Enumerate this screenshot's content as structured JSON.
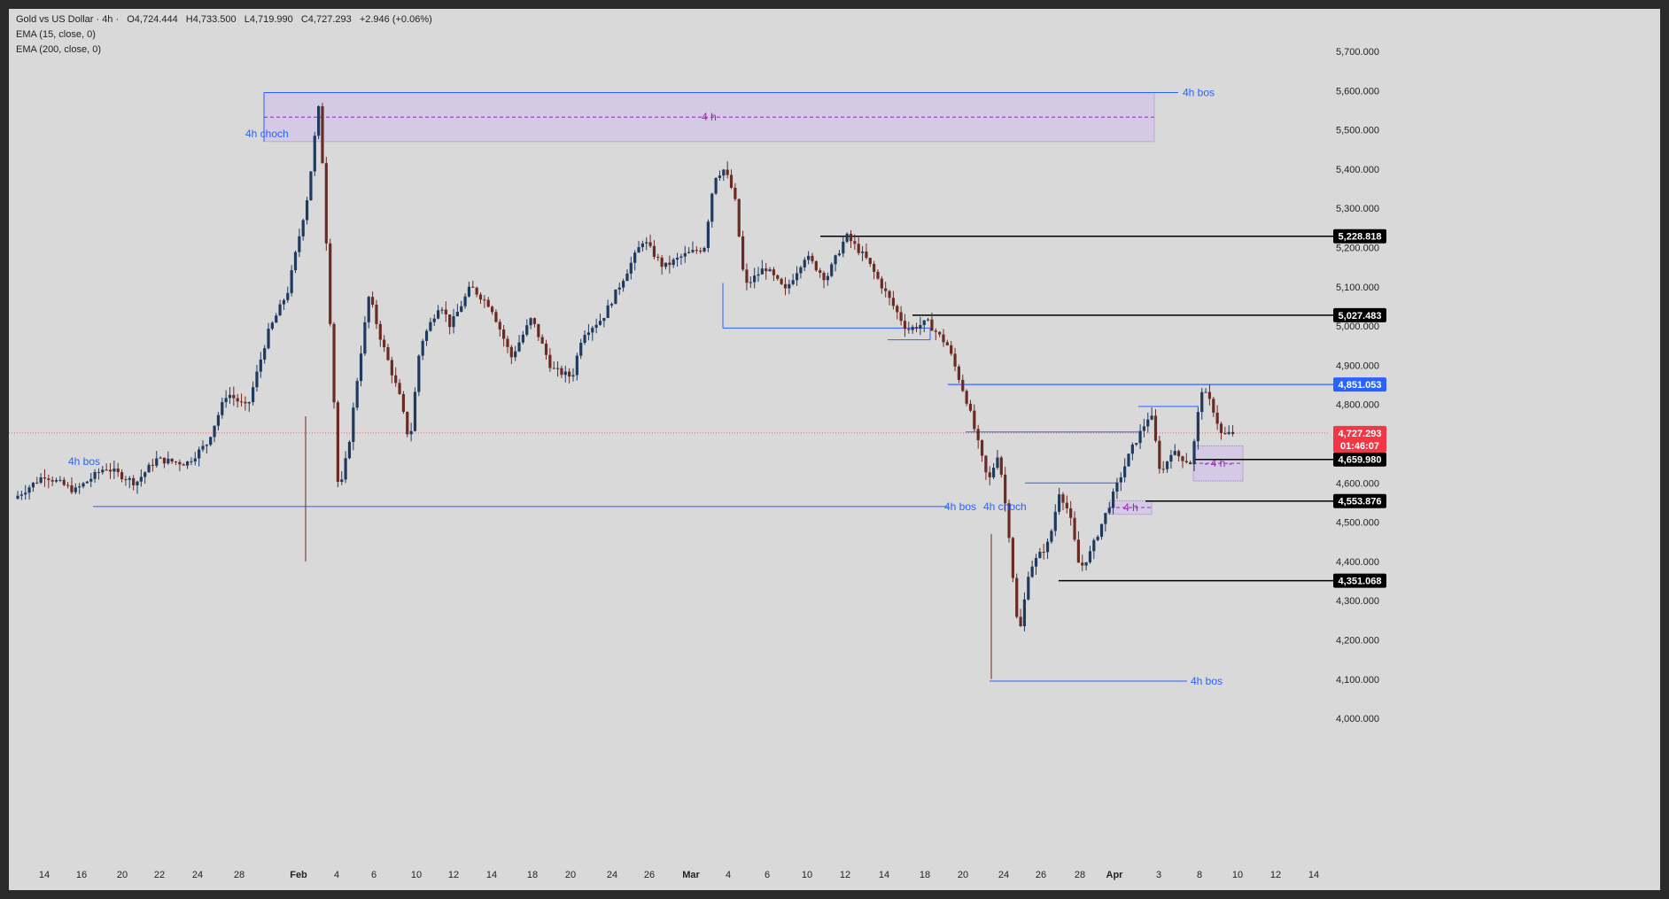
{
  "legend": {
    "symbol": "Gold vs US Dollar · 4h ·",
    "open": "O4,724.444",
    "high": "H4,733.500",
    "low": "L4,719.990",
    "close": "C4,727.293",
    "change": "+2.946 (+0.06%)",
    "ema1": "EMA (15, close, 0)",
    "ema2": "EMA (200, close, 0)"
  },
  "colors": {
    "background": "#d9d9d9",
    "frame": "#2a2a2a",
    "up_candle": "#1f3a5f",
    "down_candle": "#6b2a24",
    "structure_line": "#2962ff",
    "zone_fill": "#d1c4e9",
    "zone_text": "#9c27b0",
    "current_price": "#f23645",
    "blue_tag": "#2962ff",
    "black_tag": "#000000"
  },
  "chart_data": {
    "type": "candlestick",
    "x_tick_labels": [
      "14",
      "16",
      "20",
      "22",
      "24",
      "28",
      "Feb",
      "4",
      "6",
      "10",
      "12",
      "14",
      "18",
      "20",
      "24",
      "26",
      "Mar",
      "4",
      "6",
      "10",
      "12",
      "14",
      "18",
      "20",
      "24",
      "26",
      "28",
      "Apr",
      "3",
      "8",
      "10",
      "12",
      "14"
    ],
    "y_tick_labels": [
      "5,700.000",
      "5,600.000",
      "5,500.000",
      "5,400.000",
      "5,300.000",
      "5,200.000",
      "5,100.000",
      "5,000.000",
      "4,900.000",
      "4,800.000",
      "4,700.000",
      "4,600.000",
      "4,500.000",
      "4,400.000",
      "4,300.000",
      "4,200.000",
      "4,100.000",
      "4,000.000"
    ],
    "y_ticks": [
      5700,
      5600,
      5500,
      5400,
      5300,
      5200,
      5100,
      5000,
      4900,
      4800,
      4700,
      4600,
      4500,
      4400,
      4300,
      4200,
      4100,
      4000
    ],
    "ylim": [
      3950,
      5780
    ],
    "current_price": {
      "value": "4,727.293",
      "countdown": "01:46:07"
    },
    "price_levels": [
      {
        "label": "5,228.818",
        "value": 5228.818,
        "style": "black"
      },
      {
        "label": "5,027.483",
        "value": 5027.483,
        "style": "black"
      },
      {
        "label": "4,851.053",
        "value": 4851.053,
        "style": "blue"
      },
      {
        "label": "4,659.980",
        "value": 4659.98,
        "style": "black"
      },
      {
        "label": "4,553.876",
        "value": 4553.876,
        "style": "black"
      },
      {
        "label": "4,351.068",
        "value": 4351.068,
        "style": "black"
      }
    ],
    "annotations": [
      {
        "text": "4h bos",
        "date": "Jan 16",
        "value": 4655
      },
      {
        "text": "4h choch",
        "date": "Jan 29",
        "value": 5490
      },
      {
        "text": "4h bos",
        "date": "Feb 29",
        "value": 5595
      },
      {
        "text": "4h bos",
        "date": "Mar 19",
        "value": 4540
      },
      {
        "text": "4h choch",
        "date": "Mar 22",
        "value": 4540
      },
      {
        "text": "4h bos",
        "date": "Apr 3",
        "value": 4095
      }
    ],
    "zones": [
      {
        "label": "4 h",
        "top": 5595,
        "bottom": 5470
      },
      {
        "label": "4 h",
        "top": 4555,
        "bottom": 4520
      },
      {
        "label": "- 4 h -",
        "top": 4695,
        "bottom": 4605
      }
    ],
    "series_points": [
      [
        0,
        4560
      ],
      [
        3,
        4620
      ],
      [
        6,
        4580
      ],
      [
        9,
        4640
      ],
      [
        12,
        4600
      ],
      [
        14,
        4660
      ],
      [
        17,
        4650
      ],
      [
        19,
        4700
      ],
      [
        21,
        4830
      ],
      [
        23,
        4790
      ],
      [
        25,
        4980
      ],
      [
        27,
        5090
      ],
      [
        29,
        5340
      ],
      [
        30,
        5560
      ],
      [
        30.4,
        5420
      ],
      [
        31,
        5100
      ],
      [
        32,
        4560
      ],
      [
        33,
        4700
      ],
      [
        34,
        4900
      ],
      [
        35,
        5080
      ],
      [
        36,
        4980
      ],
      [
        37,
        4900
      ],
      [
        38,
        4820
      ],
      [
        39,
        4700
      ],
      [
        40,
        4950
      ],
      [
        42,
        5060
      ],
      [
        43,
        5000
      ],
      [
        45,
        5100
      ],
      [
        47,
        5050
      ],
      [
        49,
        4920
      ],
      [
        51,
        5020
      ],
      [
        53,
        4890
      ],
      [
        55,
        4870
      ],
      [
        56,
        4980
      ],
      [
        58,
        5020
      ],
      [
        60,
        5120
      ],
      [
        62,
        5220
      ],
      [
        64,
        5150
      ],
      [
        66,
        5180
      ],
      [
        68,
        5200
      ],
      [
        69,
        5380
      ],
      [
        70,
        5400
      ],
      [
        71,
        5330
      ],
      [
        72,
        5100
      ],
      [
        74,
        5150
      ],
      [
        76,
        5090
      ],
      [
        78,
        5180
      ],
      [
        80,
        5120
      ],
      [
        82,
        5230
      ],
      [
        84,
        5170
      ],
      [
        86,
        5080
      ],
      [
        88,
        4990
      ],
      [
        90,
        5010
      ],
      [
        92,
        4950
      ],
      [
        94,
        4800
      ],
      [
        95,
        4700
      ],
      [
        96,
        4600
      ],
      [
        97,
        4680
      ],
      [
        98,
        4480
      ],
      [
        99,
        4200
      ],
      [
        100,
        4380
      ],
      [
        102,
        4450
      ],
      [
        103,
        4580
      ],
      [
        104,
        4520
      ],
      [
        105,
        4380
      ],
      [
        106,
        4420
      ],
      [
        108,
        4550
      ],
      [
        110,
        4680
      ],
      [
        112,
        4780
      ],
      [
        113,
        4620
      ],
      [
        114,
        4680
      ],
      [
        116,
        4650
      ],
      [
        117,
        4840
      ],
      [
        118,
        4800
      ],
      [
        119,
        4720
      ],
      [
        120,
        4727
      ]
    ]
  }
}
